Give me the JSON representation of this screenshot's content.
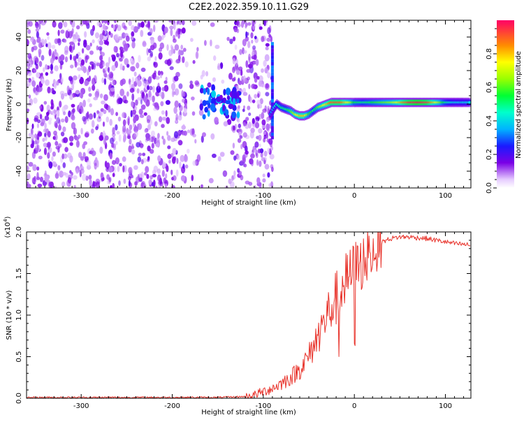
{
  "page": {
    "title": "C2E2.2022.359.10.11.G29"
  },
  "chart_data": [
    {
      "type": "heatmap",
      "xlabel": "Height of straight line (km)",
      "ylabel": "Frequency (Hz)",
      "xlim": [
        -360,
        128
      ],
      "ylim": [
        -50,
        50
      ],
      "xticks": [
        -300,
        -200,
        -100,
        0,
        100
      ],
      "yticks": [
        -40,
        -20,
        0,
        20,
        40
      ],
      "colorbar": {
        "label": "Normalized spectral amplitude",
        "ticks": [
          0.0,
          0.2,
          0.4,
          0.6,
          0.8
        ],
        "tick_labels": [
          "0.0",
          "0.2",
          "0.4",
          "0.6",
          "0.8"
        ],
        "range": [
          0,
          1
        ]
      },
      "noise_region": {
        "x_from": -360,
        "x_to": -90,
        "freq_from": -50,
        "freq_to": 50,
        "amplitude_range": [
          0.05,
          0.2
        ]
      },
      "signal_trace": {
        "x": [
          -92,
          -88,
          -85,
          -80,
          -75,
          -70,
          -65,
          -60,
          -55,
          -50,
          -45,
          -40,
          -35,
          -30,
          -25,
          -20,
          -15,
          -10,
          -5,
          0,
          10,
          20,
          30,
          40,
          50,
          60,
          70,
          80,
          90,
          100,
          110,
          120,
          128
        ],
        "freq": [
          -6,
          -2,
          0,
          -2,
          -3,
          -4,
          -6,
          -7,
          -7,
          -6,
          -4,
          -2,
          -1,
          0,
          1,
          1,
          1,
          1,
          1,
          1,
          1,
          1,
          1,
          1,
          1,
          1,
          1,
          1,
          1,
          1,
          1,
          1,
          1
        ],
        "amplitude": [
          0.3,
          0.4,
          0.45,
          0.5,
          0.5,
          0.6,
          0.7,
          0.8,
          0.8,
          0.6,
          0.5,
          0.6,
          0.7,
          0.8,
          0.9,
          0.9,
          0.9,
          0.8,
          0.7,
          0.55,
          0.5,
          0.55,
          0.6,
          0.65,
          0.8,
          0.95,
          1.0,
          0.95,
          0.75,
          0.5,
          0.4,
          0.4,
          0.4
        ]
      },
      "spike_at_x": -90
    },
    {
      "type": "line",
      "xlabel": "Height of straight line (km)",
      "ylabel": "SNR (10 * v/v)",
      "exponent_label": "(x10",
      "exponent_power": "4",
      "exponent_close": ")",
      "xlim": [
        -360,
        128
      ],
      "ylim": [
        0,
        2.0
      ],
      "xticks": [
        -300,
        -200,
        -100,
        0,
        100
      ],
      "yticks": [
        0.0,
        0.5,
        1.0,
        1.5,
        2.0
      ],
      "ytick_labels": [
        "0.0",
        "0.5",
        "1.0",
        "1.5",
        "2.0"
      ],
      "color": "#e8322a",
      "series": [
        {
          "x": [
            -360,
            -300,
            -250,
            -200,
            -150,
            -120,
            -110,
            -100,
            -90,
            -80,
            -70,
            -60,
            -50,
            -40,
            -30,
            -20,
            -10,
            0,
            10,
            20,
            30,
            40,
            50,
            60,
            70,
            80,
            90,
            100,
            110,
            120,
            128
          ],
          "values": [
            0.01,
            0.01,
            0.01,
            0.01,
            0.01,
            0.02,
            0.04,
            0.08,
            0.12,
            0.18,
            0.25,
            0.35,
            0.5,
            0.75,
            1.0,
            1.2,
            1.4,
            1.55,
            1.65,
            1.8,
            1.88,
            1.92,
            1.94,
            1.94,
            1.93,
            1.92,
            1.9,
            1.88,
            1.86,
            1.85,
            1.84
          ]
        }
      ]
    }
  ]
}
